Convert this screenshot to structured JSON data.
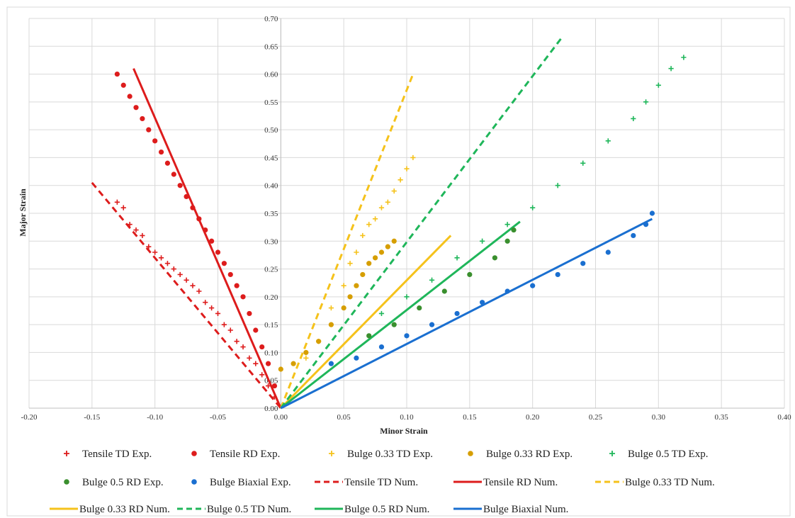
{
  "chart_data": {
    "type": "scatter",
    "xlabel": "Minor Strain",
    "ylabel": "Major Strain",
    "xlim": [
      -0.2,
      0.4
    ],
    "ylim": [
      0.0,
      0.7
    ],
    "x_ticks": [
      "-0.20",
      "-0.15",
      "-0.10",
      "-0.05",
      "0.00",
      "0.05",
      "0.10",
      "0.15",
      "0.20",
      "0.25",
      "0.30",
      "0.35",
      "0.40"
    ],
    "y_ticks": [
      "0.00",
      "0.05",
      "0.10",
      "0.15",
      "0.20",
      "0.25",
      "0.30",
      "0.35",
      "0.40",
      "0.45",
      "0.50",
      "0.55",
      "0.60",
      "0.65",
      "0.70"
    ],
    "grid": true,
    "legend_position": "bottom",
    "series": [
      {
        "name": "Tensile TD Exp.",
        "kind": "plus",
        "color": "#dd1c1c",
        "points": [
          [
            -0.13,
            0.37
          ],
          [
            -0.125,
            0.36
          ],
          [
            -0.12,
            0.33
          ],
          [
            -0.115,
            0.32
          ],
          [
            -0.11,
            0.31
          ],
          [
            -0.105,
            0.29
          ],
          [
            -0.1,
            0.28
          ],
          [
            -0.095,
            0.27
          ],
          [
            -0.09,
            0.26
          ],
          [
            -0.085,
            0.25
          ],
          [
            -0.08,
            0.24
          ],
          [
            -0.075,
            0.23
          ],
          [
            -0.07,
            0.22
          ],
          [
            -0.065,
            0.21
          ],
          [
            -0.06,
            0.19
          ],
          [
            -0.055,
            0.18
          ],
          [
            -0.05,
            0.17
          ],
          [
            -0.045,
            0.15
          ],
          [
            -0.04,
            0.14
          ],
          [
            -0.035,
            0.12
          ],
          [
            -0.03,
            0.11
          ],
          [
            -0.025,
            0.09
          ],
          [
            -0.02,
            0.08
          ],
          [
            -0.015,
            0.06
          ],
          [
            -0.01,
            0.04
          ],
          [
            -0.005,
            0.02
          ]
        ]
      },
      {
        "name": "Tensile RD Exp.",
        "kind": "dot",
        "color": "#dd1c1c",
        "points": [
          [
            -0.13,
            0.6
          ],
          [
            -0.125,
            0.58
          ],
          [
            -0.12,
            0.56
          ],
          [
            -0.115,
            0.54
          ],
          [
            -0.11,
            0.52
          ],
          [
            -0.105,
            0.5
          ],
          [
            -0.1,
            0.48
          ],
          [
            -0.095,
            0.46
          ],
          [
            -0.09,
            0.44
          ],
          [
            -0.085,
            0.42
          ],
          [
            -0.08,
            0.4
          ],
          [
            -0.075,
            0.38
          ],
          [
            -0.07,
            0.36
          ],
          [
            -0.065,
            0.34
          ],
          [
            -0.06,
            0.32
          ],
          [
            -0.055,
            0.3
          ],
          [
            -0.05,
            0.28
          ],
          [
            -0.045,
            0.26
          ],
          [
            -0.04,
            0.24
          ],
          [
            -0.035,
            0.22
          ],
          [
            -0.03,
            0.2
          ],
          [
            -0.025,
            0.17
          ],
          [
            -0.02,
            0.14
          ],
          [
            -0.015,
            0.11
          ],
          [
            -0.01,
            0.08
          ],
          [
            -0.005,
            0.04
          ]
        ]
      },
      {
        "name": "Bulge 0.33 TD Exp.",
        "kind": "plus",
        "color": "#f5c21b",
        "points": [
          [
            0.02,
            0.09
          ],
          [
            0.03,
            0.12
          ],
          [
            0.04,
            0.18
          ],
          [
            0.05,
            0.22
          ],
          [
            0.055,
            0.26
          ],
          [
            0.06,
            0.28
          ],
          [
            0.065,
            0.31
          ],
          [
            0.07,
            0.33
          ],
          [
            0.075,
            0.34
          ],
          [
            0.08,
            0.36
          ],
          [
            0.085,
            0.37
          ],
          [
            0.09,
            0.39
          ],
          [
            0.095,
            0.41
          ],
          [
            0.1,
            0.43
          ],
          [
            0.105,
            0.45
          ]
        ]
      },
      {
        "name": "Bulge 0.33 RD Exp.",
        "kind": "dot",
        "color": "#d69e00",
        "points": [
          [
            0.0,
            0.07
          ],
          [
            0.01,
            0.08
          ],
          [
            0.02,
            0.1
          ],
          [
            0.03,
            0.12
          ],
          [
            0.04,
            0.15
          ],
          [
            0.05,
            0.18
          ],
          [
            0.055,
            0.2
          ],
          [
            0.06,
            0.22
          ],
          [
            0.065,
            0.24
          ],
          [
            0.07,
            0.26
          ],
          [
            0.075,
            0.27
          ],
          [
            0.08,
            0.28
          ],
          [
            0.085,
            0.29
          ],
          [
            0.09,
            0.3
          ]
        ]
      },
      {
        "name": "Bulge 0.5 TD Exp.",
        "kind": "plus",
        "color": "#1fb65a",
        "points": [
          [
            0.08,
            0.17
          ],
          [
            0.1,
            0.2
          ],
          [
            0.12,
            0.23
          ],
          [
            0.14,
            0.27
          ],
          [
            0.16,
            0.3
          ],
          [
            0.18,
            0.33
          ],
          [
            0.2,
            0.36
          ],
          [
            0.22,
            0.4
          ],
          [
            0.24,
            0.44
          ],
          [
            0.26,
            0.48
          ],
          [
            0.28,
            0.52
          ],
          [
            0.29,
            0.55
          ],
          [
            0.3,
            0.58
          ],
          [
            0.31,
            0.61
          ],
          [
            0.32,
            0.63
          ]
        ]
      },
      {
        "name": "Bulge 0.5 RD Exp.",
        "kind": "dot",
        "color": "#3a8f2e",
        "points": [
          [
            0.07,
            0.13
          ],
          [
            0.09,
            0.15
          ],
          [
            0.11,
            0.18
          ],
          [
            0.13,
            0.21
          ],
          [
            0.15,
            0.24
          ],
          [
            0.17,
            0.27
          ],
          [
            0.18,
            0.3
          ],
          [
            0.185,
            0.32
          ]
        ]
      },
      {
        "name": "Bulge Biaxial Exp.",
        "kind": "dot",
        "color": "#1a6fd0",
        "points": [
          [
            0.04,
            0.08
          ],
          [
            0.06,
            0.09
          ],
          [
            0.08,
            0.11
          ],
          [
            0.1,
            0.13
          ],
          [
            0.12,
            0.15
          ],
          [
            0.14,
            0.17
          ],
          [
            0.16,
            0.19
          ],
          [
            0.18,
            0.21
          ],
          [
            0.2,
            0.22
          ],
          [
            0.22,
            0.24
          ],
          [
            0.24,
            0.26
          ],
          [
            0.26,
            0.28
          ],
          [
            0.28,
            0.31
          ],
          [
            0.29,
            0.33
          ],
          [
            0.295,
            0.35
          ]
        ]
      },
      {
        "name": "Tensile TD Num.",
        "kind": "dash",
        "color": "#dd1c1c",
        "points": [
          [
            -0.15,
            0.405
          ],
          [
            0.0,
            0.0
          ]
        ]
      },
      {
        "name": "Tensile RD Num.",
        "kind": "line",
        "color": "#dd1c1c",
        "points": [
          [
            -0.117,
            0.61
          ],
          [
            0.0,
            0.0
          ]
        ]
      },
      {
        "name": "Bulge 0.33 TD Num.",
        "kind": "dash",
        "color": "#f5c21b",
        "points": [
          [
            0.0,
            0.0
          ],
          [
            0.105,
            0.6
          ]
        ]
      },
      {
        "name": "Bulge 0.33 RD Num.",
        "kind": "line",
        "color": "#f5c21b",
        "points": [
          [
            0.0,
            0.0
          ],
          [
            0.135,
            0.31
          ]
        ]
      },
      {
        "name": "Bulge 0.5 TD Num.",
        "kind": "dash",
        "color": "#1fb65a",
        "points": [
          [
            0.0,
            0.0
          ],
          [
            0.223,
            0.665
          ]
        ]
      },
      {
        "name": "Bulge 0.5 RD Num.",
        "kind": "line",
        "color": "#1fb65a",
        "points": [
          [
            0.0,
            0.0
          ],
          [
            0.19,
            0.335
          ]
        ]
      },
      {
        "name": "Bulge Biaxial Num.",
        "kind": "line",
        "color": "#1a6fd0",
        "points": [
          [
            0.0,
            0.0
          ],
          [
            0.295,
            0.34
          ]
        ]
      }
    ]
  }
}
